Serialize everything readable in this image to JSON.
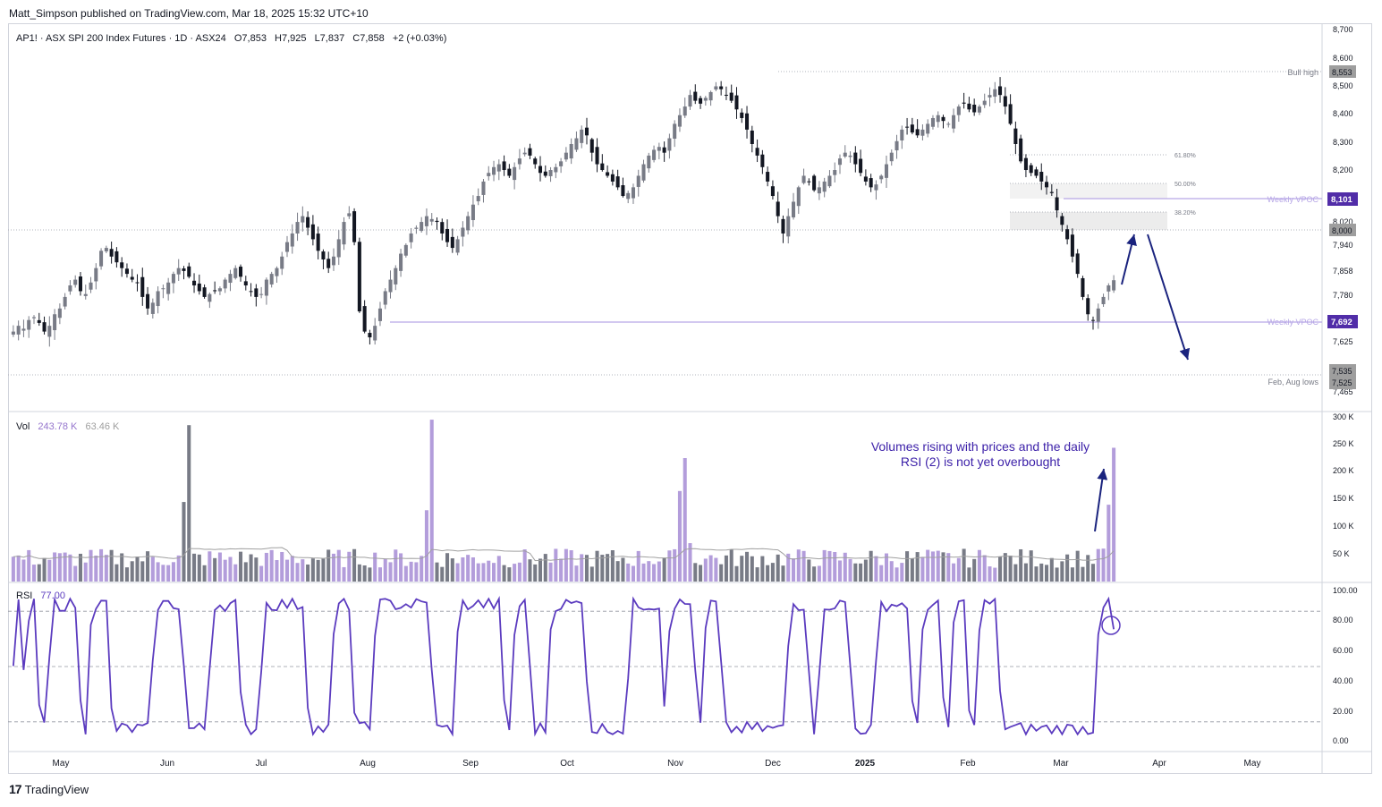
{
  "publisher": "Matt_Simpson published on TradingView.com, Mar 18, 2025 15:32 UTC+10",
  "footer": {
    "logo_mark": "17",
    "logo_text": "TradingView"
  },
  "legend": {
    "symbol": "AP1! · ASX SPI 200 Index Futures · 1D · ASX24",
    "open": "O7,853",
    "high": "H7,925",
    "low": "L7,837",
    "close": "C7,858",
    "change": "+2 (+0.03%)"
  },
  "volume_legend": {
    "label": "Vol",
    "value1": "243.78 K",
    "value2": "63.46 K"
  },
  "rsi_legend": {
    "label": "RSI",
    "value": "77.00"
  },
  "annotation": "Volumes rising with prices and the daily RSI (2) is not yet overbought",
  "levels": {
    "bull_high": {
      "label": "Bull high",
      "price": 8553,
      "price_text": "8,553"
    },
    "weekly_vpoc_upper": {
      "label": "Weekly VPOC",
      "price": 8101,
      "price_text": "8,101"
    },
    "weekly_vpoc_lower": {
      "label": "Weekly VPOC",
      "price": 7692,
      "price_text": "7,692"
    },
    "level_8000": {
      "price": 8000,
      "price_text": "8,000"
    },
    "feb_aug_lows": {
      "label": "Feb, Aug lows",
      "prices": [
        7535,
        7525
      ],
      "price_texts": [
        "7,535",
        "7,525"
      ]
    },
    "fib": [
      {
        "label": "61.80%",
        "price": 8260
      },
      {
        "label": "50.00%",
        "price": 8155
      },
      {
        "label": "38.20%",
        "price": 8050
      }
    ]
  },
  "colors": {
    "up": "#787b86",
    "down": "#131722",
    "vol_up": "#b39ddb",
    "vol_down": "#787b86",
    "vpoc": "#b7a7e6",
    "rsi": "#5b3bbf",
    "accent": "#512da8",
    "arrow": "#1a237e"
  },
  "chart_data": [
    {
      "type": "candlestick",
      "title": "AP1! · ASX SPI 200 Index Futures · 1D · ASX24",
      "x_labels": [
        "May",
        "Jun",
        "Jul",
        "Aug",
        "Sep",
        "Oct",
        "Nov",
        "Dec",
        "2025",
        "Feb",
        "Mar",
        "Apr",
        "May"
      ],
      "y_ticks": [
        "8,700",
        "8,600",
        "8,500",
        "8,400",
        "8,300",
        "8,200",
        "8,100",
        "8,020",
        "7,940",
        "7,858",
        "7,780",
        "7,700",
        "7,625",
        "7,535",
        "7,465"
      ],
      "ylim": [
        7440,
        8730
      ],
      "closes": [
        7680,
        7700,
        7690,
        7720,
        7730,
        7710,
        7680,
        7700,
        7740,
        7760,
        7800,
        7840,
        7860,
        7820,
        7810,
        7850,
        7900,
        7960,
        7970,
        7940,
        7920,
        7900,
        7880,
        7860,
        7850,
        7800,
        7760,
        7780,
        7820,
        7830,
        7850,
        7880,
        7900,
        7890,
        7870,
        7840,
        7820,
        7800,
        7810,
        7820,
        7830,
        7860,
        7880,
        7900,
        7870,
        7840,
        7820,
        7800,
        7810,
        7860,
        7880,
        7900,
        7940,
        7990,
        8020,
        8060,
        8080,
        8040,
        8000,
        7960,
        7930,
        7900,
        7940,
        8000,
        8060,
        8090,
        7990,
        7750,
        7680,
        7660,
        7700,
        7760,
        7820,
        7860,
        7900,
        7950,
        7980,
        8020,
        8040,
        8060,
        8080,
        8070,
        8060,
        8020,
        7990,
        7970,
        8000,
        8040,
        8080,
        8120,
        8150,
        8200,
        8230,
        8250,
        8260,
        8240,
        8220,
        8250,
        8280,
        8300,
        8290,
        8260,
        8230,
        8220,
        8240,
        8250,
        8270,
        8300,
        8330,
        8350,
        8380,
        8360,
        8300,
        8260,
        8240,
        8220,
        8200,
        8180,
        8150,
        8160,
        8180,
        8220,
        8260,
        8290,
        8310,
        8320,
        8300,
        8350,
        8400,
        8430,
        8460,
        8500,
        8480,
        8470,
        8490,
        8510,
        8530,
        8520,
        8500,
        8480,
        8450,
        8420,
        8380,
        8330,
        8290,
        8250,
        8200,
        8150,
        8080,
        8020,
        8080,
        8130,
        8180,
        8220,
        8200,
        8170,
        8180,
        8200,
        8220,
        8240,
        8280,
        8300,
        8290,
        8260,
        8230,
        8200,
        8180,
        8190,
        8220,
        8260,
        8300,
        8340,
        8380,
        8390,
        8370,
        8360,
        8380,
        8400,
        8420,
        8430,
        8410,
        8400,
        8430,
        8460,
        8470,
        8450,
        8440,
        8460,
        8480,
        8500,
        8520,
        8500,
        8460,
        8400,
        8330,
        8270,
        8240,
        8230,
        8220,
        8200,
        8180,
        8160,
        8100,
        8050,
        8000,
        7940,
        7880,
        7800,
        7740,
        7720,
        7760,
        7800,
        7840,
        7858
      ],
      "volume": {
        "type": "bar",
        "ylim": [
          0,
          300000
        ],
        "y_ticks": [
          "300 K",
          "250 K",
          "200 K",
          "150 K",
          "100 K",
          "50 K"
        ],
        "last_value": 243780,
        "ma_value": 63460
      },
      "rsi": {
        "type": "line",
        "period": 2,
        "ylim": [
          -5,
          105
        ],
        "y_ticks": [
          "100.00",
          "80.00",
          "60.00",
          "40.00",
          "20.00",
          "0.00"
        ],
        "bands": [
          90,
          50,
          10
        ],
        "last_value": 77
      }
    }
  ]
}
